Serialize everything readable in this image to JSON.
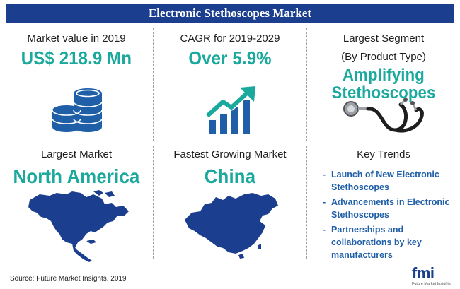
{
  "title": "Electronic Stethoscopes Market",
  "cells": {
    "market_value": {
      "label": "Market value in 2019",
      "value": "US$ 218.9 Mn",
      "icon": "coin-stacks-icon"
    },
    "cagr": {
      "label": "CAGR for 2019-2029",
      "value": "Over 5.9%",
      "icon": "growth-chart-icon"
    },
    "largest_segment": {
      "label_line1": "Largest Segment",
      "label_line2": "(By Product Type)",
      "value_line1": "Amplifying",
      "value_line2": "Stethoscopes",
      "icon": "stethoscope-icon"
    },
    "largest_market": {
      "label": "Largest Market",
      "value": "North America",
      "icon": "north-america-map-icon"
    },
    "fastest_market": {
      "label": "Fastest Growing Market",
      "value": "China",
      "icon": "china-map-icon"
    },
    "key_trends": {
      "label": "Key Trends",
      "items": [
        "Launch of New Electronic Stethoscopes",
        "Advancements in Electronic Stethoscopes",
        "Partnerships and collaborations by key manufacturers"
      ]
    }
  },
  "footer": {
    "source": "Source: Future Market Insights, 2019"
  },
  "logo": {
    "word": "fmi",
    "tagline": "Future Market Insights"
  },
  "colors": {
    "title_bg": "#1b3f8e",
    "accent": "#1aa99c",
    "map": "#1b3f8e",
    "trend_text": "#1f5fa8"
  }
}
